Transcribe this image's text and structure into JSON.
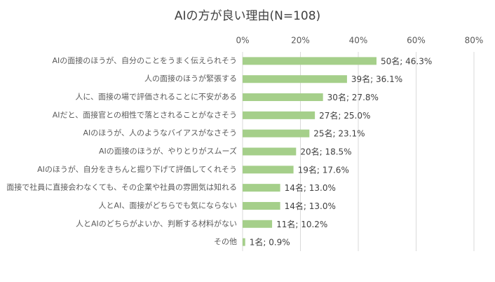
{
  "chart_data": {
    "type": "hbar",
    "title": "AIの方が良い理由(N=108)",
    "categories": [
      "AIの面接のほうが、自分のことをうまく伝えられそう",
      "人の面接のほうが緊張する",
      "人に、面接の場で評価されることに不安がある",
      "AIだと、面接官との相性で落とされることがなさそう",
      "AIのほうが、人のようなバイアスがなさそう",
      "AIの面接のほうが、やりとりがスムーズ",
      "AIのほうが、自分をきちんと掘り下げて評価してくれそう",
      "面接で社員に直接会わなくても、その企業や社員の雰囲気は知れる",
      "人とAI、面接がどちらでも気にならない",
      "人とAIのどちらがよいか、判断する材料がない",
      "その他"
    ],
    "values": [
      46.3,
      36.1,
      27.8,
      25.0,
      23.1,
      18.5,
      17.6,
      13.0,
      13.0,
      10.2,
      0.9
    ],
    "value_labels": [
      "50名; 46.3%",
      "39名; 36.1%",
      "30名; 27.8%",
      "27名; 25.0%",
      "25名; 23.1%",
      "20名; 18.5%",
      "19名; 17.6%",
      "14名; 13.0%",
      "14名; 13.0%",
      "11名; 10.2%",
      "1名; 0.9%"
    ],
    "color": "#a5cf8a",
    "xlim": [
      0,
      80
    ],
    "xticks": [
      {
        "value": 0,
        "label": "0%"
      },
      {
        "value": 20,
        "label": "20%"
      },
      {
        "value": 40,
        "label": "40%"
      },
      {
        "value": 60,
        "label": "60%"
      },
      {
        "value": 80,
        "label": "80%"
      }
    ],
    "grid": true
  }
}
